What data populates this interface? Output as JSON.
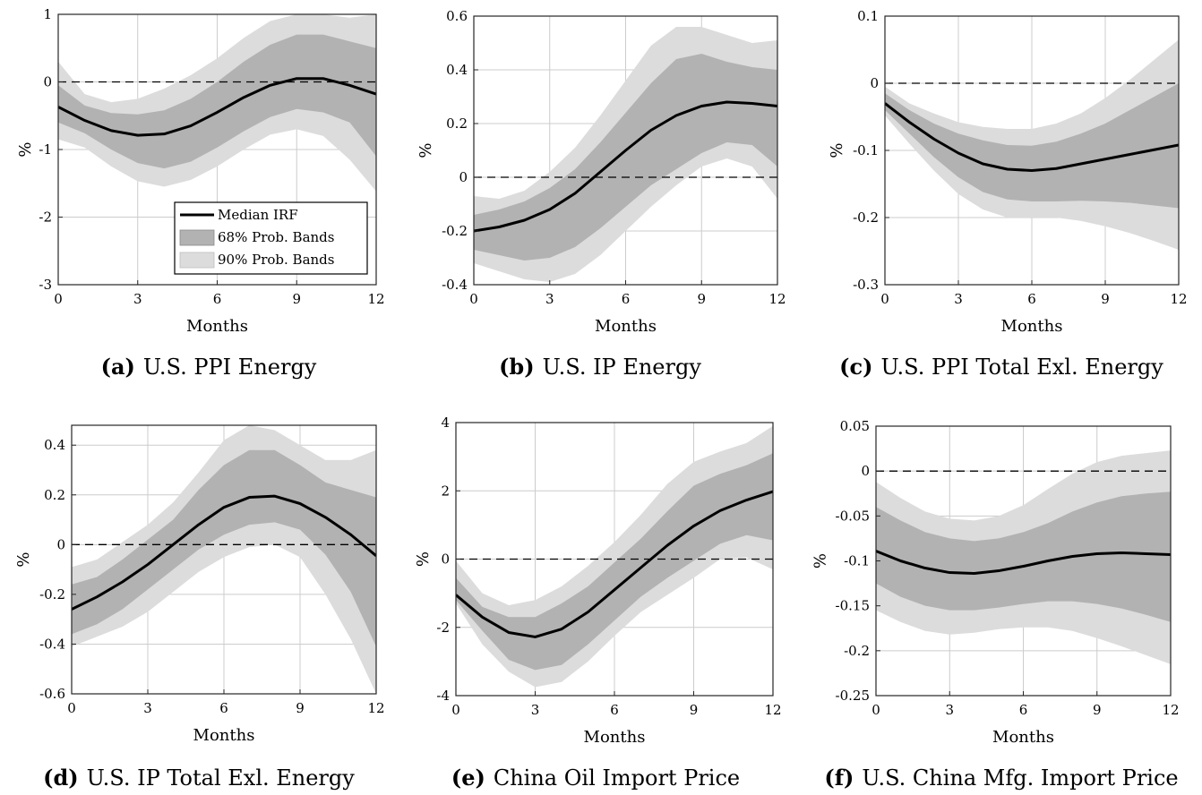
{
  "legend": {
    "median": "Median IRF",
    "band68": "68% Prob. Bands",
    "band90": "90% Prob. Bands"
  },
  "colors": {
    "band90": "#dcdcdc",
    "band68": "#b2b2b2",
    "median": "#000000",
    "zero_line": "#000000",
    "grid": "#cccccc"
  },
  "chart_data": [
    {
      "type": "line",
      "caption_letter": "(a)",
      "caption_text": "U.S. PPI Energy",
      "xlabel": "Months",
      "ylabel": "%",
      "xlim": [
        0,
        12
      ],
      "ylim": [
        -3,
        1
      ],
      "xticks": [
        0,
        3,
        6,
        9,
        12
      ],
      "yticks": [
        1,
        0,
        -1,
        -2,
        -3
      ],
      "ytick_labels": [
        "1",
        "0",
        "-1",
        "-2",
        "-3"
      ],
      "grid": true,
      "legend_position": "bottom-right",
      "x": [
        0,
        1,
        2,
        3,
        4,
        5,
        6,
        7,
        8,
        9,
        10,
        11,
        12
      ],
      "median": [
        -0.37,
        -0.57,
        -0.72,
        -0.79,
        -0.77,
        -0.65,
        -0.45,
        -0.23,
        -0.05,
        0.05,
        0.05,
        -0.05,
        -0.18
      ],
      "band68_upper": [
        -0.05,
        -0.35,
        -0.46,
        -0.48,
        -0.42,
        -0.25,
        0.0,
        0.3,
        0.55,
        0.7,
        0.7,
        0.6,
        0.5
      ],
      "band68_lower": [
        -0.6,
        -0.76,
        -1.0,
        -1.2,
        -1.28,
        -1.18,
        -0.97,
        -0.73,
        -0.52,
        -0.4,
        -0.45,
        -0.6,
        -1.1
      ],
      "band90_upper": [
        0.3,
        -0.18,
        -0.3,
        -0.25,
        -0.1,
        0.1,
        0.35,
        0.65,
        0.9,
        1.0,
        1.0,
        0.95,
        1.0
      ],
      "band90_lower": [
        -0.85,
        -0.97,
        -1.25,
        -1.47,
        -1.55,
        -1.45,
        -1.25,
        -1.0,
        -0.78,
        -0.7,
        -0.8,
        -1.15,
        -1.62
      ]
    },
    {
      "type": "line",
      "caption_letter": "(b)",
      "caption_text": "U.S. IP Energy",
      "xlabel": "Months",
      "ylabel": "%",
      "xlim": [
        0,
        12
      ],
      "ylim": [
        -0.4,
        0.6
      ],
      "xticks": [
        0,
        3,
        6,
        9,
        12
      ],
      "yticks": [
        0.6,
        0.4,
        0.2,
        0,
        -0.2,
        -0.4
      ],
      "ytick_labels": [
        "0.6",
        "0.4",
        "0.2",
        "0",
        "-0.2",
        "-0.4"
      ],
      "grid": true,
      "x": [
        0,
        1,
        2,
        3,
        4,
        5,
        6,
        7,
        8,
        9,
        10,
        11,
        12
      ],
      "median": [
        -0.2,
        -0.185,
        -0.16,
        -0.12,
        -0.06,
        0.02,
        0.1,
        0.175,
        0.23,
        0.265,
        0.28,
        0.275,
        0.265
      ],
      "band68_upper": [
        -0.14,
        -0.12,
        -0.09,
        -0.04,
        0.03,
        0.13,
        0.24,
        0.35,
        0.44,
        0.46,
        0.43,
        0.41,
        0.4
      ],
      "band68_lower": [
        -0.27,
        -0.29,
        -0.31,
        -0.3,
        -0.26,
        -0.19,
        -0.11,
        -0.03,
        0.03,
        0.09,
        0.13,
        0.12,
        0.04
      ],
      "band90_upper": [
        -0.07,
        -0.08,
        -0.05,
        0.02,
        0.11,
        0.23,
        0.36,
        0.49,
        0.56,
        0.56,
        0.53,
        0.5,
        0.51
      ],
      "band90_lower": [
        -0.32,
        -0.35,
        -0.38,
        -0.39,
        -0.36,
        -0.29,
        -0.2,
        -0.11,
        -0.03,
        0.04,
        0.07,
        0.04,
        -0.08
      ]
    },
    {
      "type": "line",
      "caption_letter": "(c)",
      "caption_text": "U.S. PPI Total Exl. Energy",
      "xlabel": "Months",
      "ylabel": "%",
      "xlim": [
        0,
        12
      ],
      "ylim": [
        -0.3,
        0.1
      ],
      "xticks": [
        0,
        3,
        6,
        9,
        12
      ],
      "yticks": [
        0.1,
        0,
        -0.1,
        -0.2,
        -0.3
      ],
      "ytick_labels": [
        "0.1",
        "0",
        "-0.1",
        "-0.2",
        "-0.3"
      ],
      "grid": true,
      "x": [
        0,
        1,
        2,
        3,
        4,
        5,
        6,
        7,
        8,
        9,
        10,
        11,
        12
      ],
      "median": [
        -0.03,
        -0.058,
        -0.083,
        -0.104,
        -0.12,
        -0.128,
        -0.13,
        -0.127,
        -0.12,
        -0.113,
        -0.106,
        -0.099,
        -0.092
      ],
      "band68_upper": [
        -0.015,
        -0.04,
        -0.06,
        -0.075,
        -0.085,
        -0.092,
        -0.093,
        -0.087,
        -0.075,
        -0.06,
        -0.04,
        -0.02,
        0.0
      ],
      "band68_lower": [
        -0.04,
        -0.075,
        -0.11,
        -0.14,
        -0.162,
        -0.173,
        -0.176,
        -0.176,
        -0.175,
        -0.176,
        -0.178,
        -0.182,
        -0.186
      ],
      "band90_upper": [
        -0.005,
        -0.03,
        -0.045,
        -0.058,
        -0.065,
        -0.068,
        -0.068,
        -0.06,
        -0.045,
        -0.022,
        0.005,
        0.035,
        0.065
      ],
      "band90_lower": [
        -0.048,
        -0.09,
        -0.13,
        -0.165,
        -0.188,
        -0.2,
        -0.2,
        -0.2,
        -0.205,
        -0.213,
        -0.223,
        -0.235,
        -0.248
      ]
    },
    {
      "type": "line",
      "caption_letter": "(d)",
      "caption_text": "U.S. IP Total Exl. Energy",
      "xlabel": "Months",
      "ylabel": "%",
      "xlim": [
        0,
        12
      ],
      "ylim": [
        -0.6,
        0.48
      ],
      "xticks": [
        0,
        3,
        6,
        9,
        12
      ],
      "yticks": [
        0.4,
        0.2,
        0,
        -0.2,
        -0.4,
        -0.6
      ],
      "ytick_labels": [
        "0.4",
        "0.2",
        "0",
        "-0.2",
        "-0.4",
        "-0.6"
      ],
      "grid": true,
      "x": [
        0,
        1,
        2,
        3,
        4,
        5,
        6,
        7,
        8,
        9,
        10,
        11,
        12
      ],
      "median": [
        -0.26,
        -0.21,
        -0.15,
        -0.08,
        0.0,
        0.08,
        0.15,
        0.19,
        0.195,
        0.165,
        0.11,
        0.04,
        -0.045
      ],
      "band68_upper": [
        -0.16,
        -0.13,
        -0.06,
        0.02,
        0.1,
        0.22,
        0.32,
        0.38,
        0.38,
        0.32,
        0.25,
        0.22,
        0.19
      ],
      "band68_lower": [
        -0.36,
        -0.32,
        -0.26,
        -0.18,
        -0.1,
        -0.02,
        0.04,
        0.08,
        0.09,
        0.06,
        -0.04,
        -0.19,
        -0.41
      ],
      "band90_upper": [
        -0.09,
        -0.06,
        0.01,
        0.08,
        0.17,
        0.29,
        0.42,
        0.48,
        0.46,
        0.4,
        0.34,
        0.34,
        0.38
      ],
      "band90_lower": [
        -0.41,
        -0.37,
        -0.33,
        -0.27,
        -0.19,
        -0.11,
        -0.05,
        -0.01,
        0.0,
        -0.05,
        -0.2,
        -0.38,
        -0.6
      ]
    },
    {
      "type": "line",
      "caption_letter": "(e)",
      "caption_text": "China Oil Import Price",
      "xlabel": "Months",
      "ylabel": "%",
      "xlim": [
        0,
        12
      ],
      "ylim": [
        -4,
        4
      ],
      "xticks": [
        0,
        3,
        6,
        9,
        12
      ],
      "yticks": [
        4,
        2,
        0,
        -2,
        -4
      ],
      "ytick_labels": [
        "4",
        "2",
        "0",
        "-2",
        "-4"
      ],
      "grid": true,
      "x": [
        0,
        1,
        2,
        3,
        4,
        5,
        6,
        7,
        8,
        9,
        10,
        11,
        12
      ],
      "median": [
        -1.05,
        -1.7,
        -2.15,
        -2.28,
        -2.05,
        -1.55,
        -0.9,
        -0.25,
        0.4,
        0.97,
        1.42,
        1.73,
        1.98
      ],
      "band68_upper": [
        -0.55,
        -1.4,
        -1.7,
        -1.7,
        -1.3,
        -0.8,
        -0.1,
        0.6,
        1.4,
        2.15,
        2.5,
        2.75,
        3.1
      ],
      "band68_lower": [
        -1.2,
        -2.1,
        -2.95,
        -3.25,
        -3.1,
        -2.5,
        -1.8,
        -1.1,
        -0.55,
        -0.05,
        0.45,
        0.7,
        0.55
      ],
      "band90_upper": [
        -0.05,
        -1.0,
        -1.35,
        -1.2,
        -0.8,
        -0.2,
        0.5,
        1.3,
        2.2,
        2.85,
        3.15,
        3.4,
        3.9
      ],
      "band90_lower": [
        -1.3,
        -2.5,
        -3.3,
        -3.75,
        -3.6,
        -3.0,
        -2.25,
        -1.55,
        -1.05,
        -0.55,
        0.0,
        0.05,
        -0.3
      ]
    },
    {
      "type": "line",
      "caption_letter": "(f)",
      "caption_text": "U.S. China Mfg. Import Price",
      "xlabel": "Months",
      "ylabel": "%",
      "xlim": [
        0,
        12
      ],
      "ylim": [
        -0.25,
        0.05
      ],
      "xticks": [
        0,
        3,
        6,
        9,
        12
      ],
      "yticks": [
        0.05,
        0,
        -0.05,
        -0.1,
        -0.15,
        -0.2,
        -0.25
      ],
      "ytick_labels": [
        "0.05",
        "0",
        "-0.05",
        "-0.1",
        "-0.15",
        "-0.2",
        "-0.25"
      ],
      "grid": true,
      "x": [
        0,
        1,
        2,
        3,
        4,
        5,
        6,
        7,
        8,
        9,
        10,
        11,
        12
      ],
      "median": [
        -0.089,
        -0.1,
        -0.108,
        -0.113,
        -0.114,
        -0.111,
        -0.106,
        -0.1,
        -0.095,
        -0.092,
        -0.091,
        -0.092,
        -0.093
      ],
      "band68_upper": [
        -0.04,
        -0.055,
        -0.068,
        -0.075,
        -0.078,
        -0.075,
        -0.068,
        -0.058,
        -0.045,
        -0.035,
        -0.028,
        -0.025,
        -0.023
      ],
      "band68_lower": [
        -0.125,
        -0.14,
        -0.15,
        -0.155,
        -0.155,
        -0.152,
        -0.148,
        -0.145,
        -0.145,
        -0.148,
        -0.153,
        -0.16,
        -0.168
      ],
      "band90_upper": [
        -0.012,
        -0.03,
        -0.045,
        -0.053,
        -0.055,
        -0.05,
        -0.038,
        -0.02,
        -0.003,
        0.01,
        0.017,
        0.02,
        0.023
      ],
      "band90_lower": [
        -0.155,
        -0.168,
        -0.178,
        -0.182,
        -0.18,
        -0.176,
        -0.174,
        -0.174,
        -0.178,
        -0.186,
        -0.195,
        -0.205,
        -0.215
      ]
    }
  ]
}
